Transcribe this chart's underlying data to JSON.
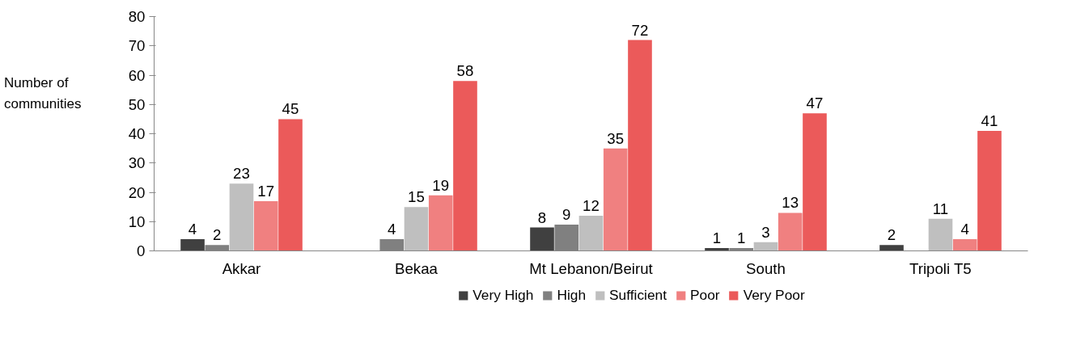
{
  "chart_data": {
    "type": "bar",
    "ylabel": "Number of\ncommunities",
    "categories": [
      "Akkar",
      "Bekaa",
      "Mt Lebanon/Beirut",
      "South",
      "Tripoli T5"
    ],
    "series": [
      {
        "name": "Very High",
        "color": "#404040",
        "values": [
          4,
          null,
          8,
          1,
          2
        ]
      },
      {
        "name": "High",
        "color": "#808080",
        "values": [
          2,
          4,
          9,
          1,
          null
        ]
      },
      {
        "name": "Sufficient",
        "color": "#bfbfbf",
        "values": [
          23,
          15,
          12,
          3,
          11
        ]
      },
      {
        "name": "Poor",
        "color": "#f08080",
        "values": [
          17,
          19,
          35,
          13,
          4
        ]
      },
      {
        "name": "Very Poor",
        "color": "#eb5a5a",
        "values": [
          45,
          58,
          72,
          47,
          41
        ]
      }
    ],
    "ylim": [
      0,
      80
    ],
    "yticks": [
      0,
      10,
      20,
      30,
      40,
      50,
      60,
      70,
      80
    ],
    "data_labels": true,
    "grid": false,
    "legend": "bottom"
  }
}
